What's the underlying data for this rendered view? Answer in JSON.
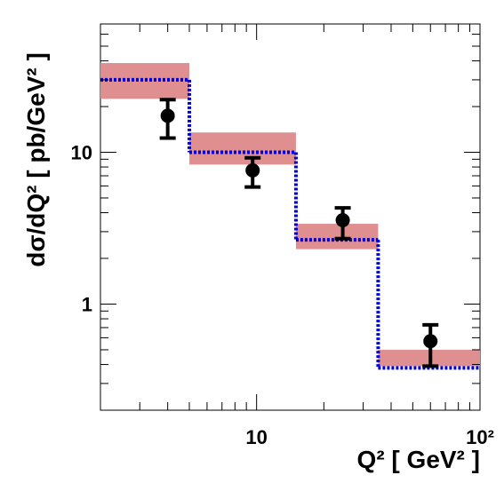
{
  "chart_data": {
    "type": "histogram-points",
    "xlabel": "Q² [ GeV² ]",
    "ylabel": "dσ/dQ² [ pb/GeV² ]",
    "log_x": true,
    "log_y": true,
    "xlim": [
      2,
      100
    ],
    "ylim": [
      0.2,
      70
    ],
    "xticks": [
      10,
      {
        "value": 100,
        "label": "10²"
      }
    ],
    "xminorticks": [
      3,
      4,
      5,
      6,
      7,
      8,
      9,
      20,
      30,
      40,
      50,
      60,
      70,
      80,
      90
    ],
    "yticks": [
      1,
      10
    ],
    "yminorticks": [
      0.3,
      0.4,
      0.5,
      0.6,
      0.7,
      0.8,
      0.9,
      2,
      3,
      4,
      5,
      6,
      7,
      8,
      9,
      20,
      30,
      40,
      50,
      60,
      70
    ],
    "band": {
      "color": "#df8f8f",
      "bins": [
        2,
        5,
        15,
        35,
        100
      ],
      "low": [
        22.5,
        8.3,
        2.3,
        0.39
      ],
      "high": [
        38.7,
        13.5,
        3.38,
        0.5
      ]
    },
    "model": {
      "color": "#0000dd",
      "bins": [
        2,
        5,
        15,
        35,
        100
      ],
      "values": [
        30,
        10,
        2.65,
        0.38
      ]
    },
    "data": {
      "color": "#000000",
      "x": [
        4.0,
        9.6,
        24.3,
        60
      ],
      "y": [
        17.4,
        7.6,
        3.57,
        0.57
      ],
      "yhigh": [
        22.2,
        9.2,
        4.3,
        0.73
      ],
      "ylow": [
        12.4,
        5.9,
        2.7,
        0.39
      ]
    }
  }
}
